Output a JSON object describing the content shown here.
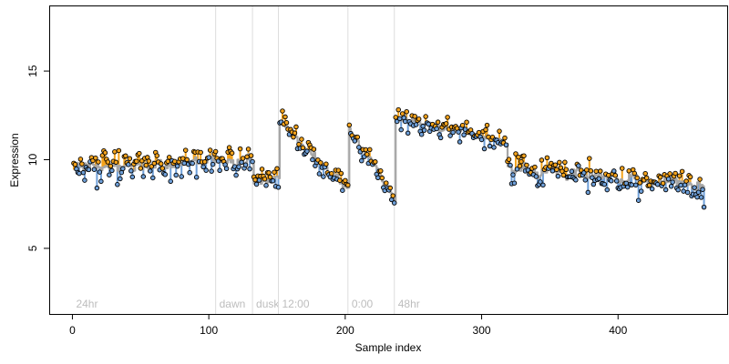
{
  "chart_data": {
    "type": "scatter",
    "xlabel": "Sample index",
    "ylabel": "Expression",
    "xlim": [
      -17,
      480
    ],
    "ylim": [
      1.3,
      18.7
    ],
    "xticks": [
      0,
      100,
      200,
      300,
      400
    ],
    "yticks": [
      5,
      10,
      15
    ],
    "grid": false,
    "colors": {
      "above_fit": "#f4a31c",
      "below_fit": "#6e9fd8",
      "fit_line": "#a6a6a6",
      "phase_line": "#dddddd",
      "phase_label": "#bdbdbd",
      "point_edge": "#000000"
    },
    "phases": [
      {
        "label": "24hr",
        "start": 0
      },
      {
        "label": "dawn",
        "start": 105
      },
      {
        "label": "dusk",
        "start": 132
      },
      {
        "label": "12:00",
        "start": 151
      },
      {
        "label": "0:00",
        "start": 202
      },
      {
        "label": "48hr",
        "start": 236
      }
    ],
    "segments": [
      {
        "x0": 0,
        "x1": 132,
        "y0": 9.5,
        "y1": 10.0,
        "noise": 0.75
      },
      {
        "x0": 132,
        "x1": 151,
        "y0": 8.6,
        "y1": 9.0,
        "noise": 0.6
      },
      {
        "x0": 151,
        "x1": 202,
        "y0": 12.2,
        "y1": 8.2,
        "noise": 0.55
      },
      {
        "x0": 202,
        "x1": 236,
        "y0": 11.8,
        "y1": 7.8,
        "noise": 0.6
      },
      {
        "x0": 236,
        "x1": 318,
        "y0": 12.4,
        "y1": 11.0,
        "noise": 0.55
      },
      {
        "x0": 318,
        "x1": 463,
        "y0": 9.6,
        "y1": 8.4,
        "noise": 0.85
      }
    ],
    "n_points": 463,
    "seed": 7
  }
}
